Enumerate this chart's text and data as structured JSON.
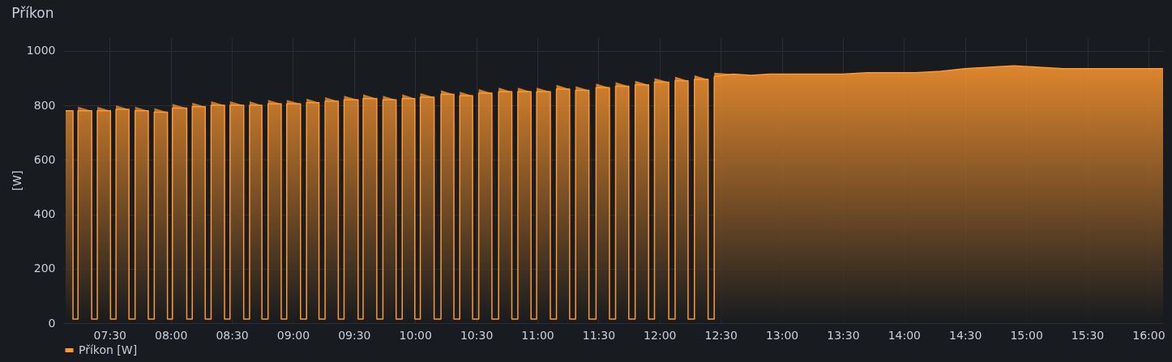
{
  "chart_data": {
    "type": "area",
    "title": "Příkon",
    "ylabel": "[W]",
    "xlim": [
      7.12,
      16.12
    ],
    "ylim": [
      0,
      1050
    ],
    "yticks": [
      0,
      200,
      400,
      600,
      800,
      1000
    ],
    "xticks": [
      {
        "value": 7.5,
        "label": "07:30"
      },
      {
        "value": 8,
        "label": "08:00"
      },
      {
        "value": 8.5,
        "label": "08:30"
      },
      {
        "value": 9,
        "label": "09:00"
      },
      {
        "value": 9.5,
        "label": "09:30"
      },
      {
        "value": 10,
        "label": "10:00"
      },
      {
        "value": 10.5,
        "label": "10:30"
      },
      {
        "value": 11,
        "label": "11:00"
      },
      {
        "value": 11.5,
        "label": "11:30"
      },
      {
        "value": 12,
        "label": "12:00"
      },
      {
        "value": 12.5,
        "label": "12:30"
      },
      {
        "value": 13,
        "label": "13:00"
      },
      {
        "value": 13.5,
        "label": "13:30"
      },
      {
        "value": 14,
        "label": "14:00"
      },
      {
        "value": 14.5,
        "label": "14:30"
      },
      {
        "value": 15,
        "label": "15:00"
      },
      {
        "value": 15.5,
        "label": "15:30"
      },
      {
        "value": 16,
        "label": "16:00"
      }
    ],
    "grid": true,
    "legend": "bottom left",
    "series": [
      {
        "name": "Příkon [W]",
        "color": "#ff9830",
        "x": [
          7.14,
          7.2,
          7.2,
          7.241,
          7.241,
          7.353,
          7.353,
          7.399,
          7.399,
          7.507,
          7.507,
          7.552,
          7.552,
          7.658,
          7.658,
          7.708,
          7.708,
          7.816,
          7.816,
          7.865,
          7.865,
          7.973,
          7.973,
          8.014,
          8.014,
          8.131,
          8.131,
          8.176,
          8.176,
          8.282,
          8.282,
          8.33,
          8.33,
          8.44,
          8.44,
          8.485,
          8.485,
          8.597,
          8.597,
          8.645,
          8.645,
          8.746,
          8.746,
          8.796,
          8.796,
          8.904,
          8.904,
          8.949,
          8.949,
          9.062,
          9.062,
          9.111,
          9.111,
          9.213,
          9.213,
          9.263,
          9.263,
          9.371,
          9.371,
          9.418,
          9.418,
          9.533,
          9.533,
          9.574,
          9.574,
          9.686,
          9.686,
          9.736,
          9.736,
          9.844,
          9.844,
          9.894,
          9.894,
          9.997,
          9.997,
          10.042,
          10.042,
          10.155,
          10.155,
          10.211,
          10.211,
          10.317,
          10.317,
          10.365,
          10.365,
          10.47,
          10.47,
          10.52,
          10.52,
          10.628,
          10.628,
          10.683,
          10.683,
          10.791,
          10.791,
          10.84,
          10.84,
          10.948,
          10.948,
          10.994,
          10.994,
          11.106,
          11.106,
          11.156,
          11.156,
          11.264,
          11.264,
          11.313,
          11.313,
          11.422,
          11.422,
          11.48,
          11.48,
          11.59,
          11.59,
          11.64,
          11.64,
          11.748,
          11.748,
          11.8,
          11.8,
          11.91,
          11.91,
          11.958,
          11.958,
          12.075,
          12.075,
          12.127,
          12.127,
          12.233,
          12.233,
          12.285,
          12.285,
          12.397,
          12.397,
          12.447,
          12.447,
          12.6,
          12.75,
          12.9,
          13.1,
          13.3,
          13.5,
          13.7,
          13.9,
          14.1,
          14.3,
          14.5,
          14.7,
          14.9,
          15.1,
          15.3,
          15.5,
          15.7,
          15.9,
          16.12
        ],
        "values": [
          780,
          780,
          15,
          15,
          780,
          780,
          15,
          15,
          780,
          780,
          15,
          15,
          785,
          785,
          15,
          15,
          780,
          780,
          15,
          15,
          775,
          775,
          15,
          15,
          790,
          790,
          15,
          15,
          795,
          795,
          15,
          15,
          800,
          800,
          15,
          15,
          800,
          800,
          15,
          15,
          800,
          800,
          15,
          15,
          805,
          805,
          15,
          15,
          805,
          805,
          15,
          15,
          810,
          810,
          15,
          15,
          815,
          815,
          15,
          15,
          820,
          820,
          15,
          15,
          825,
          825,
          15,
          15,
          820,
          820,
          15,
          15,
          825,
          825,
          15,
          15,
          830,
          830,
          15,
          15,
          840,
          840,
          15,
          15,
          835,
          835,
          15,
          15,
          845,
          845,
          15,
          15,
          850,
          850,
          15,
          15,
          850,
          850,
          15,
          15,
          850,
          850,
          15,
          15,
          860,
          860,
          15,
          15,
          855,
          855,
          15,
          15,
          865,
          865,
          15,
          15,
          870,
          870,
          15,
          15,
          875,
          875,
          15,
          15,
          885,
          885,
          15,
          15,
          890,
          890,
          15,
          15,
          895,
          895,
          15,
          15,
          905,
          915,
          910,
          915,
          915,
          915,
          915,
          920,
          920,
          920,
          925,
          935,
          940,
          945,
          940,
          935,
          935,
          935,
          935,
          935
        ]
      }
    ]
  }
}
